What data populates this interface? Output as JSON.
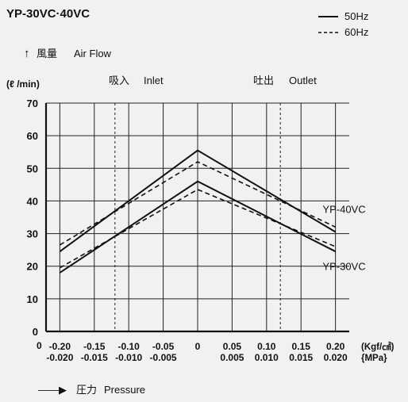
{
  "model_title": "YP-30VC·40VC",
  "y_axis": {
    "arrow_glyph": "↑",
    "label_jp": "風量",
    "label_en": "Air Flow",
    "unit": "(ℓ /min)"
  },
  "x_axis": {
    "arrow_glyph": "——▶",
    "label_jp": "圧力",
    "label_en": "Pressure",
    "unit_kgf": "(Kgf/㎠)",
    "unit_mpa": "{MPa}"
  },
  "regions": {
    "inlet_jp": "吸入",
    "inlet_en": "Inlet",
    "outlet_jp": "吐出",
    "outlet_en": "Outlet"
  },
  "legend": [
    {
      "label": "50Hz",
      "style": "solid"
    },
    {
      "label": "60Hz",
      "style": "dashed"
    }
  ],
  "chart_data": {
    "type": "line",
    "title": "YP-30VC·40VC",
    "xlabel": "Pressure",
    "ylabel": "Air Flow",
    "xlim": [
      -0.22,
      0.22
    ],
    "ylim": [
      0,
      70
    ],
    "x_ticks": [
      -0.2,
      -0.15,
      -0.1,
      -0.05,
      0,
      0.05,
      0.1,
      0.15,
      0.2
    ],
    "x_tick_labels_kgf": [
      "-0.20",
      "-0.15",
      "-0.10",
      "-0.05",
      "0",
      "0.05",
      "0.10",
      "0.15",
      "0.20"
    ],
    "x_tick_labels_mpa": [
      "-0.020",
      "-0.015",
      "-0.010",
      "-0.005",
      "",
      "0.005",
      "0.010",
      "0.015",
      "0.020"
    ],
    "x_axis_origin_label": "0",
    "y_ticks": [
      0,
      10,
      20,
      30,
      40,
      50,
      60,
      70
    ],
    "grid": true,
    "legend_position": "top-right",
    "region_dividers_x": [
      -0.12,
      0.12
    ],
    "x": [
      -0.2,
      0,
      0.2
    ],
    "series": [
      {
        "name": "YP-40VC 50Hz",
        "model": "YP-40VC",
        "freq": "50Hz",
        "style": "solid",
        "values": [
          24.5,
          55.5,
          30.5
        ]
      },
      {
        "name": "YP-40VC 60Hz",
        "model": "YP-40VC",
        "freq": "60Hz",
        "style": "dashed",
        "values": [
          26.5,
          52,
          32
        ]
      },
      {
        "name": "YP-30VC 50Hz",
        "model": "YP-30VC",
        "freq": "50Hz",
        "style": "solid",
        "values": [
          18,
          46,
          24.5
        ]
      },
      {
        "name": "YP-30VC 60Hz",
        "model": "YP-30VC",
        "freq": "60Hz",
        "style": "dashed",
        "values": [
          19.5,
          43.5,
          26
        ]
      }
    ],
    "series_labels": [
      {
        "text": "YP-40VC",
        "x": 0.2,
        "y": 37.5
      },
      {
        "text": "YP-30VC",
        "x": 0.2,
        "y": 20
      }
    ]
  }
}
